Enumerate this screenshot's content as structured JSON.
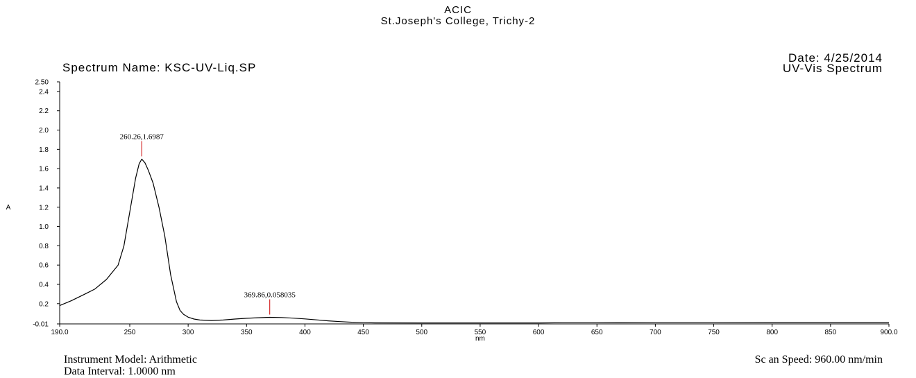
{
  "header": {
    "lab": "ACIC",
    "institution": "St.Joseph's College, Trichy-2",
    "spectrum_name": "Spectrum Name: KSC-UV-Liq.SP",
    "date": "Date: 4/25/2014",
    "spectrum_type": "UV-Vis Spectrum"
  },
  "footer": {
    "instrument": "Instrument Model: Arithmetic",
    "interval": "Data Interval: 1.0000 nm",
    "scan_speed": "Sc an Speed: 960.00 nm/min"
  },
  "colors": {
    "trace": "#000000",
    "marker": "#cc0000"
  },
  "chart_data": {
    "type": "line",
    "xlabel": "nm",
    "ylabel": "A",
    "xlim": [
      190,
      900
    ],
    "ylim": [
      -0.01,
      2.5
    ],
    "grid": false,
    "x_ticks": [
      190,
      250,
      300,
      350,
      400,
      450,
      500,
      550,
      600,
      650,
      700,
      750,
      800,
      850,
      900
    ],
    "x_tick_labels": [
      "190.0",
      "250",
      "300",
      "350",
      "400",
      "450",
      "500",
      "550",
      "600",
      "650",
      "700",
      "750",
      "800",
      "850",
      "900.0"
    ],
    "y_ticks": [
      -0.01,
      0.2,
      0.4,
      0.6,
      0.8,
      1.0,
      1.2,
      1.4,
      1.6,
      1.8,
      2.0,
      2.2,
      2.4,
      2.5
    ],
    "y_tick_labels": [
      "-0.01",
      "0.2",
      "0.4",
      "0.6",
      "0.8",
      "1.0",
      "1.2",
      "1.4",
      "1.6",
      "1.8",
      "2.0",
      "2.2",
      "2.4",
      "2.50"
    ],
    "series": [
      {
        "x": [
          190,
          200,
          210,
          220,
          230,
          240,
          245,
          250,
          255,
          258,
          260.26,
          263,
          266,
          270,
          275,
          280,
          285,
          290,
          293,
          296,
          300,
          305,
          310,
          320,
          330,
          340,
          350,
          360,
          369.86,
          380,
          390,
          400,
          410,
          420,
          430,
          440,
          450,
          460,
          500,
          550,
          600,
          620,
          650,
          700,
          750,
          800,
          850,
          900
        ],
        "y": [
          0.18,
          0.23,
          0.29,
          0.35,
          0.45,
          0.6,
          0.8,
          1.15,
          1.5,
          1.65,
          1.6987,
          1.66,
          1.58,
          1.45,
          1.2,
          0.9,
          0.5,
          0.22,
          0.13,
          0.09,
          0.06,
          0.04,
          0.03,
          0.025,
          0.03,
          0.04,
          0.048,
          0.054,
          0.058035,
          0.056,
          0.05,
          0.042,
          0.032,
          0.022,
          0.014,
          0.007,
          0.003,
          0.001,
          0.0,
          0.0,
          0.0,
          0.002,
          0.002,
          0.003,
          0.003,
          0.004,
          0.004,
          0.004
        ]
      }
    ],
    "peaks": [
      {
        "x": 260.26,
        "y": 1.6987,
        "label": "260.26,1.6987"
      },
      {
        "x": 369.86,
        "y": 0.058035,
        "label": "369.86,0.058035"
      }
    ]
  }
}
